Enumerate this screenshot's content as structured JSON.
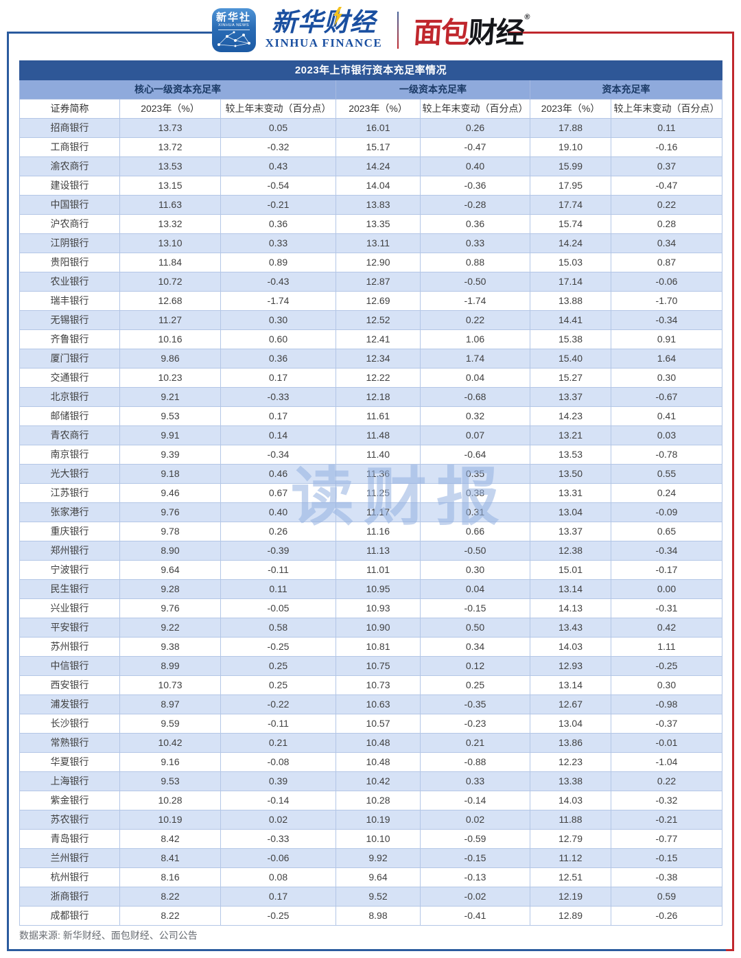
{
  "logos": {
    "xinhua_app": {
      "title": "新华社",
      "subtitle": "XINHUA NEWS"
    },
    "xinhua_finance": {
      "cn": "新华财经",
      "en": "XINHUA FINANCE"
    },
    "bread_finance": {
      "part_red": "面包",
      "part_black": "财经",
      "registered": "®"
    }
  },
  "chart_data": {
    "type": "table",
    "title": "2023年上市银行资本充足率情况",
    "column_groups": [
      {
        "label": "核心一级资本充足率",
        "span": 3
      },
      {
        "label": "一级资本充足率",
        "span": 2
      },
      {
        "label": "资本充足率",
        "span": 2
      }
    ],
    "columns": [
      "证券简称",
      "2023年（%）",
      "较上年末变动（百分点）",
      "2023年（%）",
      "较上年末变动（百分点）",
      "2023年（%）",
      "较上年末变动（百分点）"
    ],
    "rows": [
      [
        "招商银行",
        "13.73",
        "0.05",
        "16.01",
        "0.26",
        "17.88",
        "0.11"
      ],
      [
        "工商银行",
        "13.72",
        "-0.32",
        "15.17",
        "-0.47",
        "19.10",
        "-0.16"
      ],
      [
        "渝农商行",
        "13.53",
        "0.43",
        "14.24",
        "0.40",
        "15.99",
        "0.37"
      ],
      [
        "建设银行",
        "13.15",
        "-0.54",
        "14.04",
        "-0.36",
        "17.95",
        "-0.47"
      ],
      [
        "中国银行",
        "11.63",
        "-0.21",
        "13.83",
        "-0.28",
        "17.74",
        "0.22"
      ],
      [
        "沪农商行",
        "13.32",
        "0.36",
        "13.35",
        "0.36",
        "15.74",
        "0.28"
      ],
      [
        "江阴银行",
        "13.10",
        "0.33",
        "13.11",
        "0.33",
        "14.24",
        "0.34"
      ],
      [
        "贵阳银行",
        "11.84",
        "0.89",
        "12.90",
        "0.88",
        "15.03",
        "0.87"
      ],
      [
        "农业银行",
        "10.72",
        "-0.43",
        "12.87",
        "-0.50",
        "17.14",
        "-0.06"
      ],
      [
        "瑞丰银行",
        "12.68",
        "-1.74",
        "12.69",
        "-1.74",
        "13.88",
        "-1.70"
      ],
      [
        "无锡银行",
        "11.27",
        "0.30",
        "12.52",
        "0.22",
        "14.41",
        "-0.34"
      ],
      [
        "齐鲁银行",
        "10.16",
        "0.60",
        "12.41",
        "1.06",
        "15.38",
        "0.91"
      ],
      [
        "厦门银行",
        "9.86",
        "0.36",
        "12.34",
        "1.74",
        "15.40",
        "1.64"
      ],
      [
        "交通银行",
        "10.23",
        "0.17",
        "12.22",
        "0.04",
        "15.27",
        "0.30"
      ],
      [
        "北京银行",
        "9.21",
        "-0.33",
        "12.18",
        "-0.68",
        "13.37",
        "-0.67"
      ],
      [
        "邮储银行",
        "9.53",
        "0.17",
        "11.61",
        "0.32",
        "14.23",
        "0.41"
      ],
      [
        "青农商行",
        "9.91",
        "0.14",
        "11.48",
        "0.07",
        "13.21",
        "0.03"
      ],
      [
        "南京银行",
        "9.39",
        "-0.34",
        "11.40",
        "-0.64",
        "13.53",
        "-0.78"
      ],
      [
        "光大银行",
        "9.18",
        "0.46",
        "11.36",
        "0.35",
        "13.50",
        "0.55"
      ],
      [
        "江苏银行",
        "9.46",
        "0.67",
        "11.25",
        "0.38",
        "13.31",
        "0.24"
      ],
      [
        "张家港行",
        "9.76",
        "0.40",
        "11.17",
        "0.31",
        "13.04",
        "-0.09"
      ],
      [
        "重庆银行",
        "9.78",
        "0.26",
        "11.16",
        "0.66",
        "13.37",
        "0.65"
      ],
      [
        "郑州银行",
        "8.90",
        "-0.39",
        "11.13",
        "-0.50",
        "12.38",
        "-0.34"
      ],
      [
        "宁波银行",
        "9.64",
        "-0.11",
        "11.01",
        "0.30",
        "15.01",
        "-0.17"
      ],
      [
        "民生银行",
        "9.28",
        "0.11",
        "10.95",
        "0.04",
        "13.14",
        "0.00"
      ],
      [
        "兴业银行",
        "9.76",
        "-0.05",
        "10.93",
        "-0.15",
        "14.13",
        "-0.31"
      ],
      [
        "平安银行",
        "9.22",
        "0.58",
        "10.90",
        "0.50",
        "13.43",
        "0.42"
      ],
      [
        "苏州银行",
        "9.38",
        "-0.25",
        "10.81",
        "0.34",
        "14.03",
        "1.11"
      ],
      [
        "中信银行",
        "8.99",
        "0.25",
        "10.75",
        "0.12",
        "12.93",
        "-0.25"
      ],
      [
        "西安银行",
        "10.73",
        "0.25",
        "10.73",
        "0.25",
        "13.14",
        "0.30"
      ],
      [
        "浦发银行",
        "8.97",
        "-0.22",
        "10.63",
        "-0.35",
        "12.67",
        "-0.98"
      ],
      [
        "长沙银行",
        "9.59",
        "-0.11",
        "10.57",
        "-0.23",
        "13.04",
        "-0.37"
      ],
      [
        "常熟银行",
        "10.42",
        "0.21",
        "10.48",
        "0.21",
        "13.86",
        "-0.01"
      ],
      [
        "华夏银行",
        "9.16",
        "-0.08",
        "10.48",
        "-0.88",
        "12.23",
        "-1.04"
      ],
      [
        "上海银行",
        "9.53",
        "0.39",
        "10.42",
        "0.33",
        "13.38",
        "0.22"
      ],
      [
        "紫金银行",
        "10.28",
        "-0.14",
        "10.28",
        "-0.14",
        "14.03",
        "-0.32"
      ],
      [
        "苏农银行",
        "10.19",
        "0.02",
        "10.19",
        "0.02",
        "11.88",
        "-0.21"
      ],
      [
        "青岛银行",
        "8.42",
        "-0.33",
        "10.10",
        "-0.59",
        "12.79",
        "-0.77"
      ],
      [
        "兰州银行",
        "8.41",
        "-0.06",
        "9.92",
        "-0.15",
        "11.12",
        "-0.15"
      ],
      [
        "杭州银行",
        "8.16",
        "0.08",
        "9.64",
        "-0.13",
        "12.51",
        "-0.38"
      ],
      [
        "浙商银行",
        "8.22",
        "0.17",
        "9.52",
        "-0.02",
        "12.19",
        "0.59"
      ],
      [
        "成都银行",
        "8.22",
        "-0.25",
        "8.98",
        "-0.41",
        "12.89",
        "-0.26"
      ]
    ]
  },
  "watermark": "读财报",
  "footer": {
    "source": "数据来源: 新华财经、面包财经、公司公告"
  },
  "colors": {
    "title_bg": "#2E5797",
    "group_bg": "#8FAADC",
    "row_alt_bg": "#D6E2F6",
    "cell_border": "#B3C6E6",
    "frame_blue": "#2A5B9E",
    "frame_red": "#C0272D",
    "watermark_blue": "#94B1E0"
  }
}
